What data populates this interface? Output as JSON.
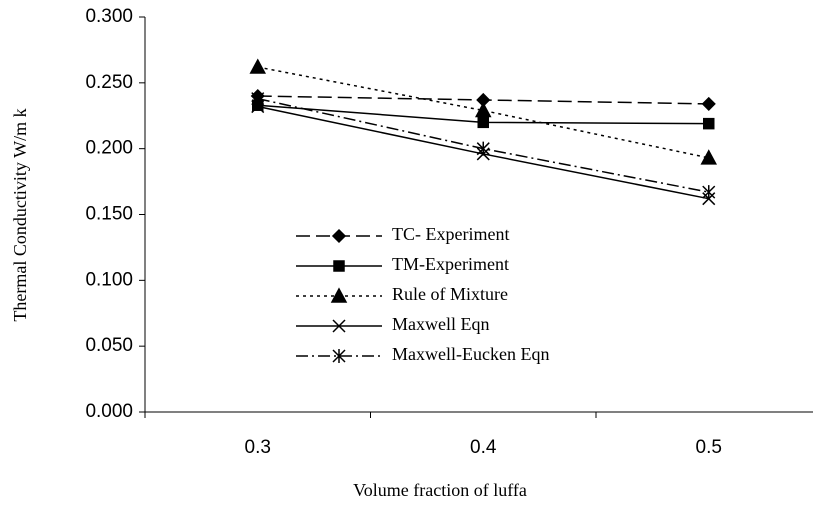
{
  "chart_data": {
    "type": "line",
    "x_label": "Volume fraction of luffa",
    "y_label": "Thermal Conductivity W/m k",
    "categories": [
      "0.3",
      "0.4",
      "0.5"
    ],
    "ylim": [
      0,
      0.3
    ],
    "yticks": [
      {
        "value": 0,
        "label": "0.000"
      },
      {
        "value": 0.05,
        "label": "0.050"
      },
      {
        "value": 0.1,
        "label": "0.100"
      },
      {
        "value": 0.15,
        "label": "0.150"
      },
      {
        "value": 0.2,
        "label": "0.200"
      },
      {
        "value": 0.25,
        "label": "0.250"
      },
      {
        "value": 0.3,
        "label": "0.300"
      }
    ],
    "legend": "lower center",
    "series": [
      {
        "name": "TC- Experiment",
        "color": "#000000",
        "dash": "long-dash",
        "marker": "diamond",
        "values": [
          0.24,
          0.237,
          0.234
        ]
      },
      {
        "name": "TM-Experiment",
        "color": "#000000",
        "dash": "solid",
        "marker": "square",
        "values": [
          0.233,
          0.22,
          0.219
        ]
      },
      {
        "name": "Rule of Mixture",
        "color": "#000000",
        "dash": "dotted",
        "marker": "triangle",
        "values": [
          0.262,
          0.229,
          0.193
        ]
      },
      {
        "name": "Maxwell Eqn",
        "color": "#000000",
        "dash": "solid",
        "marker": "x",
        "values": [
          0.232,
          0.196,
          0.162
        ]
      },
      {
        "name": "Maxwell-Eucken Eqn",
        "color": "#000000",
        "dash": "dash-dot",
        "marker": "asterisk",
        "values": [
          0.238,
          0.2,
          0.167
        ]
      }
    ]
  }
}
